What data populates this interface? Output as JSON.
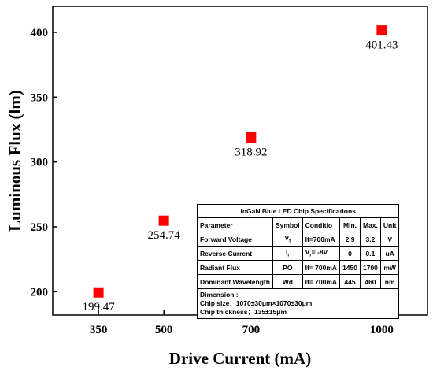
{
  "chart_data": {
    "type": "scatter",
    "xlabel": "Drive Current (mA)",
    "ylabel": "Luminous Flux (lm)",
    "xlim": [
      245,
      1105
    ],
    "ylim": [
      182,
      420
    ],
    "xticks": [
      350,
      500,
      700,
      1000
    ],
    "yticks": [
      200,
      250,
      300,
      350,
      400
    ],
    "grid": false,
    "marker": "square",
    "color": "#ff0000",
    "points": [
      {
        "x": 350,
        "y": 199.47,
        "label": "199.47"
      },
      {
        "x": 500,
        "y": 254.74,
        "label": "254.74"
      },
      {
        "x": 700,
        "y": 318.92,
        "label": "318.92"
      },
      {
        "x": 1000,
        "y": 401.43,
        "label": "401.43"
      }
    ]
  },
  "spec_table": {
    "caption": "InGaN Blue LED Chip Specifications",
    "header": [
      "Parameter",
      "Symbol",
      "Conditio",
      "Min.",
      "Max.",
      "Unit"
    ],
    "rows": [
      {
        "parameter": "Forward Voltage",
        "symbol": "Vf",
        "condition": "If=700mA",
        "min": "2.9",
        "max": "3.2",
        "unit": "V"
      },
      {
        "parameter": "Reverse Current",
        "symbol": "Ir",
        "condition": "Vr= -8V",
        "min": "0",
        "max": "0.1",
        "unit": "uA"
      },
      {
        "parameter": "Radiant Flux",
        "symbol": "PO",
        "condition": "If= 700mA",
        "min": "1450",
        "max": "1700",
        "unit": "mW"
      },
      {
        "parameter": "Dominant Wavelength",
        "symbol": "Wd",
        "condition": "If= 700mA",
        "min": "445",
        "max": "460",
        "unit": "nm"
      }
    ],
    "dimension_title": "Dimension :",
    "chip_size": "Chip size：1070±30μm×1070±30μm",
    "chip_thickness": "Chip thickness：135±15μm"
  }
}
